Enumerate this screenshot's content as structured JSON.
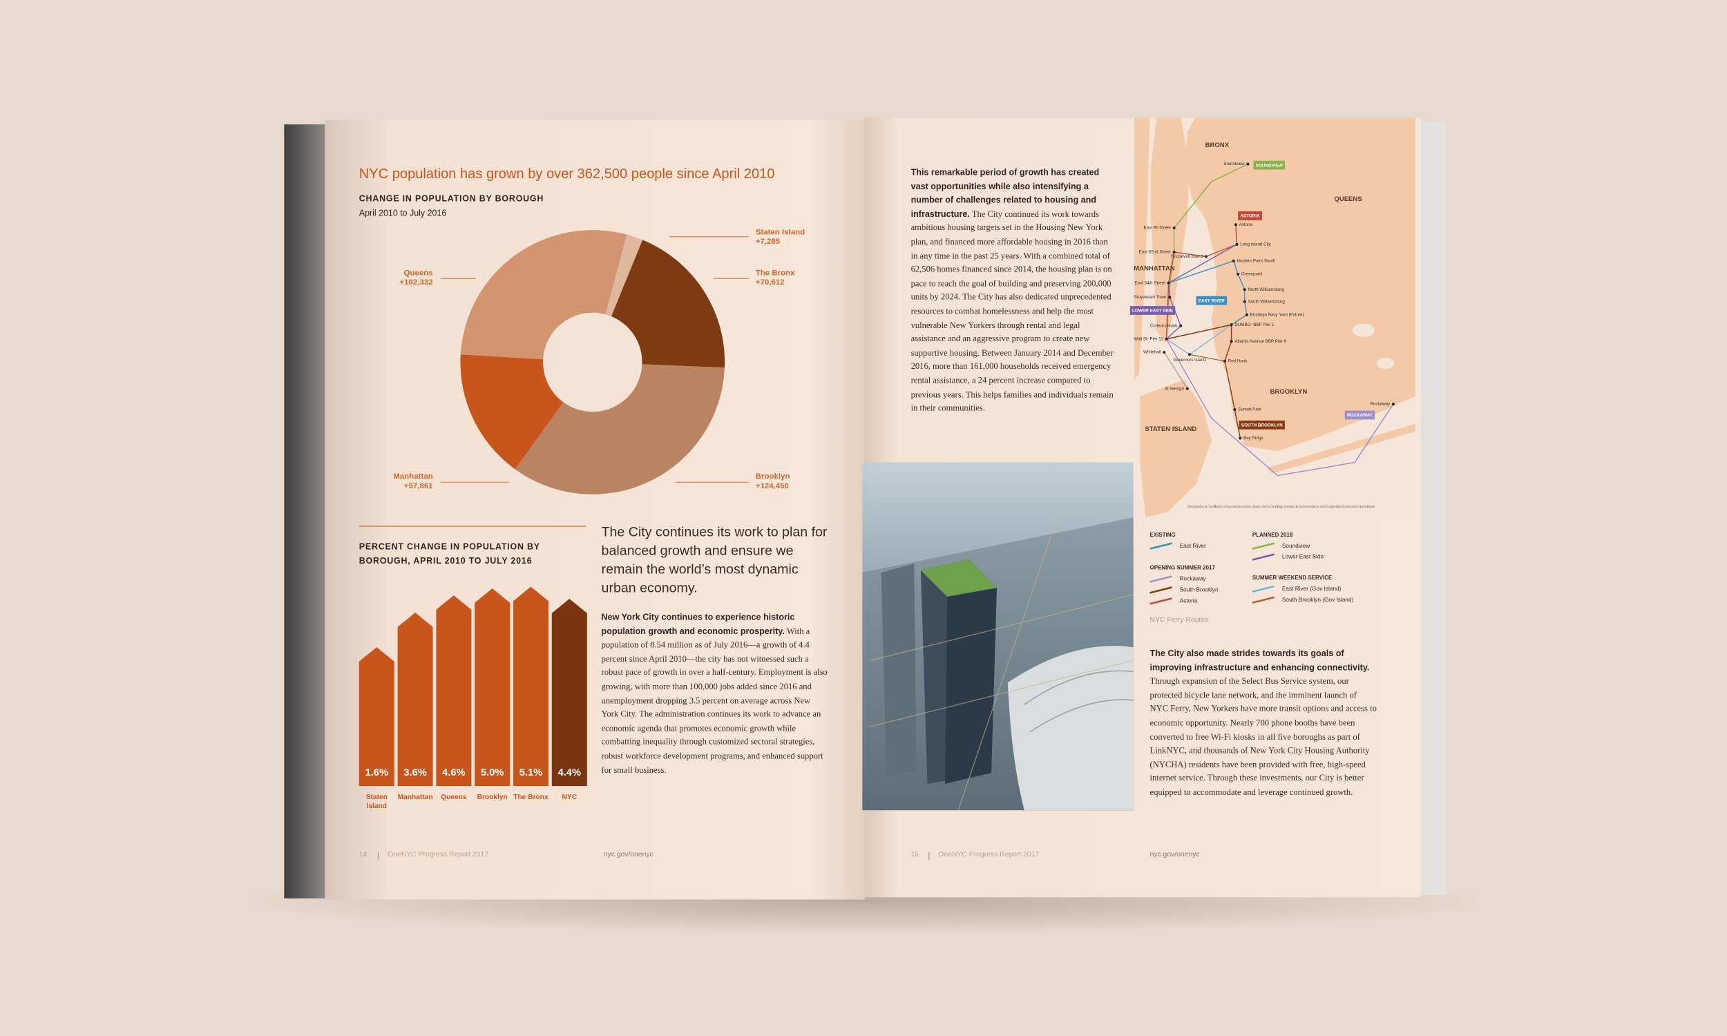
{
  "left_page": {
    "headline": "NYC population has grown by over 362,500 people since April 2010",
    "donut": {
      "type": "pie",
      "title": "CHANGE IN POPULATION BY BOROUGH",
      "subtitle": "April 2010 to July 2016",
      "categories": [
        "Staten Island",
        "The Bronx",
        "Brooklyn",
        "Manhattan",
        "Queens"
      ],
      "values": [
        7285,
        70612,
        124450,
        57861,
        102332
      ],
      "value_labels": [
        "+7,285",
        "+70,612",
        "+124,450",
        "+57,861",
        "+102,332"
      ],
      "colors": [
        "#dfb79c",
        "#7e3a10",
        "#ba8462",
        "#c8561c",
        "#d39470"
      ]
    },
    "bars": {
      "type": "bar",
      "title": "PERCENT CHANGE IN POPULATION BY BOROUGH, APRIL 2010 TO JULY 2016",
      "categories": [
        "Staten Island",
        "Manhattan",
        "Queens",
        "Brooklyn",
        "The Bronx",
        "NYC"
      ],
      "values": [
        1.6,
        3.6,
        4.6,
        5.0,
        5.1,
        4.4
      ],
      "value_labels": [
        "1.6%",
        "3.6%",
        "4.6%",
        "5.0%",
        "5.1%",
        "4.4%"
      ],
      "colors": [
        "#c8561c",
        "#c8561c",
        "#c8561c",
        "#c8561c",
        "#c8561c",
        "#7a3510"
      ]
    },
    "heading": "The City continues its work to plan for balanced growth and ensure we remain the world’s most dynamic urban economy.",
    "lead": "New York City continues to experience historic population growth and economic prosperity.",
    "body": "With a population of 8.54 million as of July 2016—a growth of 4.4 percent since April 2010—the city has not witnessed such a robust pace of growth in over a half-century. Employment is also growing, with more than 100,000 jobs added since 2016 and unemployment dropping 3.5 percent on average across New York City. The administration continues its work to advance an economic agenda that promotes economic growth while combatting inequality through customized sectoral strategies, robust workforce development programs, and enhanced support for small business.",
    "footer": {
      "page": 14,
      "report": "OneNYC Progress Report 2017",
      "url": "nyc.gov/onenyc"
    }
  },
  "right_page": {
    "intro": {
      "lead": "This remarkable period of growth has created vast opportunities while also intensifying a number of challenges related to housing and infrastructure.",
      "body": "The City continued its work towards ambitious housing targets set in the Housing New York plan, and financed more affordable housing in 2016 than in any time in the past 25 years. With a combined total of 62,506 homes financed since 2014, the housing plan is on pace to reach the goal of building and preserving 200,000 units by 2024. The City has also dedicated unprecedented resources to combat homelessness and help the most vulnerable New Yorkers through rental and legal assistance and an aggressive program to create new supportive housing. Between January 2014 and December 2016, more than 161,000 households received emergency rental assistance, a 24 percent increase compared to previous years. This helps families and individuals remain in their communities."
    },
    "map": {
      "boroughs": [
        "BRONX",
        "QUEENS",
        "MANHATTAN",
        "BROOKLYN",
        "STATEN ISLAND"
      ],
      "routes": [
        {
          "label": "SOUNDVIEW",
          "color": "#8cb04b"
        },
        {
          "label": "ASTORIA",
          "color": "#c0473a"
        },
        {
          "label": "EAST RIVER",
          "color": "#3c8fc4"
        },
        {
          "label": "LOWER EAST SIDE",
          "color": "#7a5fa8"
        },
        {
          "label": "SOUTH BROOKLYN",
          "color": "#8a3a12"
        },
        {
          "label": "ROCKAWAY",
          "color": "#9b8fc9"
        }
      ],
      "stops": [
        "Soundview",
        "Astoria",
        "Long Island City",
        "Hunters Point South",
        "Greenpoint",
        "North Williamsburg",
        "South Williamsburg",
        "Brooklyn Navy Yard (Future)",
        "DUMBO- BBP Pier 1",
        "Atlantic Avenue BBP Pier 6",
        "Red Hook",
        "Sunset Park",
        "Bay Ridge",
        "Rockaway",
        "East 90 Street",
        "Roosevelt Island",
        "East 62nd Street",
        "East 34th Street",
        "Stuyvesant Town",
        "Corlears Hook",
        "Wall St- Pier 11",
        "Whitehall",
        "Governors Island",
        "St George"
      ],
      "note": "Geography is modified to show service more clearly. Some landings shown do not yet exist or need upgrades to become operational"
    },
    "legend": {
      "groups": [
        {
          "title": "EXISTING",
          "items": [
            {
              "name": "East River",
              "color": "#3c8fc4"
            }
          ]
        },
        {
          "title": "PLANNED 2018",
          "items": [
            {
              "name": "Soundview",
              "color": "#8cb04b"
            },
            {
              "name": "Lower East Side",
              "color": "#7a5fa8"
            }
          ]
        },
        {
          "title": "OPENING SUMMER 2017",
          "items": [
            {
              "name": "Rockaway",
              "color": "#9b8fc9"
            },
            {
              "name": "South Brooklyn",
              "color": "#8a3a12"
            },
            {
              "name": "Astoria",
              "color": "#c0473a"
            }
          ]
        },
        {
          "title": "SUMMER WEEKEND SERVICE",
          "items": [
            {
              "name": "East River (Gov Island)",
              "color": "#6bb5d8"
            },
            {
              "name": "South Brooklyn (Gov Island)",
              "color": "#b0622e"
            }
          ]
        }
      ],
      "caption": "NYC Ferry Routes"
    },
    "connectivity": {
      "lead": "The City also made strides towards its goals of improving infrastructure and enhancing connectivity.",
      "body": "Through expansion of the Select Bus Service system, our protected bicycle lane network, and the imminent launch of NYC Ferry, New Yorkers have more transit options and access to economic opportunity. Nearly 700 phone booths have been converted to free Wi-Fi kiosks in all five boroughs as part of LinkNYC, and thousands of New York City Housing Authority (NYCHA) residents have been provided with free, high-speed internet service. Through these investments, our City is better equipped to accommodate and leverage continued growth."
    },
    "footer": {
      "page": 15,
      "report": "OneNYC Progress Report 2017",
      "url": "nyc.gov/onenyc"
    }
  }
}
